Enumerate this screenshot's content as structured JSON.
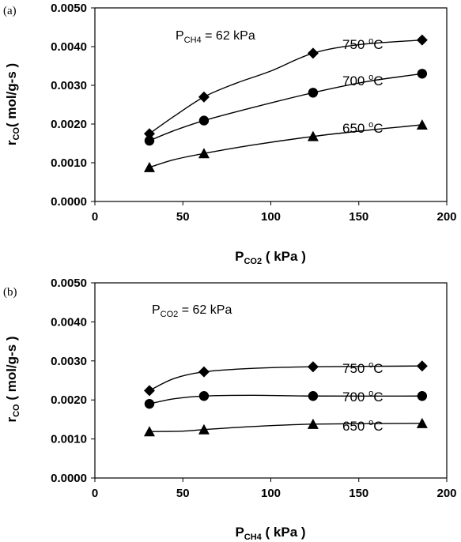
{
  "chart_data": [
    {
      "type": "line",
      "panel_label": "(a)",
      "annotation": {
        "main": "P",
        "sub": "CH4",
        "rest": " = 62 kPa"
      },
      "xlabel": {
        "main": "P",
        "sub": "CO2",
        "rest": " ( kPa )"
      },
      "ylabel": {
        "main": "r",
        "sub": "CO",
        "rest": "( mol/g-s )"
      },
      "xlim": [
        0,
        200
      ],
      "ylim": [
        0,
        0.005
      ],
      "x_ticks": [
        "0",
        "50",
        "100",
        "150",
        "200"
      ],
      "y_ticks": [
        "0.0000",
        "0.0010",
        "0.0020",
        "0.0030",
        "0.0040",
        "0.0050"
      ],
      "grid": false,
      "x": [
        31,
        62,
        124,
        186
      ],
      "series": [
        {
          "name": "750 °C",
          "label": {
            "main": "750 ",
            "sup": "o",
            "rest": "C"
          },
          "marker": "diamond",
          "values": [
            0.00175,
            0.0027,
            0.00383,
            0.00417
          ],
          "curve": [
            [
              31,
              0.00175
            ],
            [
              45,
              0.0022
            ],
            [
              62,
              0.0027
            ],
            [
              80,
              0.00305
            ],
            [
              100,
              0.00337
            ],
            [
              124,
              0.00383
            ],
            [
              150,
              0.00405
            ],
            [
              186,
              0.00417
            ]
          ]
        },
        {
          "name": "700 °C",
          "label": {
            "main": "700 ",
            "sup": "o",
            "rest": "C"
          },
          "marker": "circle",
          "values": [
            0.00157,
            0.00209,
            0.00281,
            0.0033
          ],
          "curve": [
            [
              31,
              0.00157
            ],
            [
              45,
              0.00183
            ],
            [
              62,
              0.00209
            ],
            [
              90,
              0.00243
            ],
            [
              124,
              0.00281
            ],
            [
              155,
              0.0031
            ],
            [
              186,
              0.0033
            ]
          ]
        },
        {
          "name": "650 °C",
          "label": {
            "main": "650 ",
            "sup": "o",
            "rest": "C"
          },
          "marker": "triangle",
          "values": [
            0.00088,
            0.00124,
            0.00168,
            0.00198
          ],
          "curve": [
            [
              31,
              0.00088
            ],
            [
              45,
              0.00108
            ],
            [
              62,
              0.00124
            ],
            [
              90,
              0.00146
            ],
            [
              124,
              0.00168
            ],
            [
              155,
              0.00184
            ],
            [
              186,
              0.00198
            ]
          ]
        }
      ]
    },
    {
      "type": "line",
      "panel_label": "(b)",
      "annotation": {
        "main": "P",
        "sub": "CO2",
        "rest": " = 62 kPa"
      },
      "xlabel": {
        "main": "P",
        "sub": "CH4",
        "rest": " ( kPa )"
      },
      "ylabel": {
        "main": "r",
        "sub": "CO",
        "rest": " ( mol/g-s )"
      },
      "xlim": [
        0,
        200
      ],
      "ylim": [
        0,
        0.005
      ],
      "x_ticks": [
        "0",
        "50",
        "100",
        "150",
        "200"
      ],
      "y_ticks": [
        "0.0000",
        "0.0010",
        "0.0020",
        "0.0030",
        "0.0040",
        "0.0050"
      ],
      "grid": false,
      "x": [
        31,
        62,
        124,
        186
      ],
      "series": [
        {
          "name": "750 °C",
          "label": {
            "main": "750 ",
            "sup": "o",
            "rest": "C"
          },
          "marker": "diamond",
          "values": [
            0.00224,
            0.00272,
            0.00285,
            0.00287
          ],
          "curve": [
            [
              31,
              0.00224
            ],
            [
              45,
              0.00255
            ],
            [
              62,
              0.00272
            ],
            [
              90,
              0.00281
            ],
            [
              124,
              0.00285
            ],
            [
              186,
              0.00287
            ]
          ]
        },
        {
          "name": "700 °C",
          "label": {
            "main": "700 ",
            "sup": "o",
            "rest": "C"
          },
          "marker": "circle",
          "values": [
            0.0019,
            0.0021,
            0.0021,
            0.0021
          ],
          "curve": [
            [
              31,
              0.0019
            ],
            [
              45,
              0.00203
            ],
            [
              62,
              0.0021
            ],
            [
              90,
              0.00212
            ],
            [
              124,
              0.0021
            ],
            [
              186,
              0.0021
            ]
          ]
        },
        {
          "name": "650 °C",
          "label": {
            "main": "650 ",
            "sup": "o",
            "rest": "C"
          },
          "marker": "triangle",
          "values": [
            0.00119,
            0.00124,
            0.00138,
            0.0014
          ],
          "curve": [
            [
              31,
              0.00119
            ],
            [
              50,
              0.0012
            ],
            [
              62,
              0.00124
            ],
            [
              90,
              0.00132
            ],
            [
              124,
              0.00138
            ],
            [
              186,
              0.0014
            ]
          ]
        }
      ]
    }
  ]
}
